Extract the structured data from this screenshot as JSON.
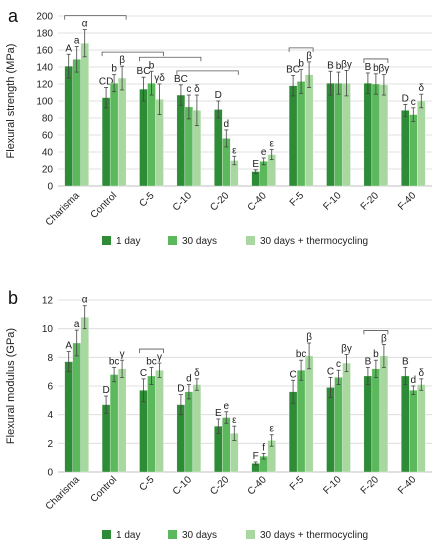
{
  "colors": {
    "day1": "#2e8b36",
    "day30": "#5cb85c",
    "thermo": "#a8d8a0"
  },
  "chart_data": [
    {
      "type": "bar",
      "panel_label": "a",
      "ylabel": "Flexural strength (MPa)",
      "ylim": [
        0,
        200
      ],
      "ytick_step": 20,
      "grid": true,
      "legend_position": "bottom",
      "categories": [
        "Charisma",
        "Control",
        "C-5",
        "C-10",
        "C-20",
        "C-40",
        "F-5",
        "F-10",
        "F-20",
        "F-40"
      ],
      "series": [
        {
          "name": "1 day",
          "values": [
            141,
            104,
            114,
            107,
            90,
            17,
            118,
            121,
            121,
            89
          ],
          "errors": [
            14,
            12,
            14,
            12,
            10,
            2,
            12,
            14,
            12,
            7
          ],
          "labels": [
            "A",
            "CD",
            "BC",
            "BC",
            "D",
            "E",
            "BC",
            "B",
            "B",
            "D"
          ]
        },
        {
          "name": "30 days",
          "values": [
            149,
            121,
            121,
            93,
            56,
            29,
            123,
            121,
            120,
            84
          ],
          "errors": [
            15,
            10,
            14,
            14,
            10,
            4,
            14,
            13,
            12,
            8
          ],
          "labels": [
            "a",
            "b",
            "b",
            "c",
            "d",
            "e",
            "b",
            "b",
            "b",
            "c"
          ]
        },
        {
          "name": "30 days + thermocycling",
          "values": [
            168,
            127,
            102,
            89,
            30,
            37,
            131,
            121,
            119,
            100
          ],
          "errors": [
            16,
            14,
            18,
            18,
            5,
            6,
            15,
            15,
            12,
            8
          ],
          "labels": [
            "α",
            "β",
            "γδ",
            "δ",
            "ε",
            "ε",
            "β",
            "βγ",
            "βγ",
            "δ"
          ]
        }
      ],
      "brackets": [
        [
          0,
          1
        ],
        [
          1,
          2
        ],
        [
          2,
          3
        ],
        [
          3,
          4
        ],
        [
          6,
          6
        ],
        [
          8,
          8
        ]
      ]
    },
    {
      "type": "bar",
      "panel_label": "b",
      "ylabel": "Flexural modulus (GPa)",
      "ylim": [
        0,
        12
      ],
      "ytick_step": 2,
      "grid": true,
      "legend_position": "bottom",
      "categories": [
        "Charisma",
        "Control",
        "C-5",
        "C-10",
        "C-20",
        "C-40",
        "F-5",
        "F-10",
        "F-20",
        "F-40"
      ],
      "series": [
        {
          "name": "1 day",
          "values": [
            7.7,
            4.7,
            5.7,
            4.7,
            3.2,
            0.6,
            5.6,
            5.9,
            6.7,
            6.7
          ],
          "errors": [
            0.7,
            0.6,
            0.8,
            0.7,
            0.5,
            0.1,
            0.8,
            0.7,
            0.6,
            0.6
          ],
          "labels": [
            "A",
            "D",
            "C",
            "D",
            "E",
            "F",
            "C",
            "C",
            "B",
            "B"
          ]
        },
        {
          "name": "30 days",
          "values": [
            9.0,
            6.8,
            6.7,
            5.6,
            3.8,
            1.1,
            7.1,
            6.6,
            7.2,
            5.7
          ],
          "errors": [
            0.9,
            0.5,
            0.6,
            0.5,
            0.4,
            0.2,
            0.7,
            0.5,
            0.6,
            0.3
          ],
          "labels": [
            "a",
            "bc",
            "bc",
            "d",
            "e",
            "f",
            "bc",
            "c",
            "b",
            "d"
          ]
        },
        {
          "name": "30 days + thermocycling",
          "values": [
            10.8,
            7.2,
            7.1,
            6.1,
            2.7,
            2.2,
            8.1,
            7.6,
            8.1,
            6.1
          ],
          "errors": [
            0.8,
            0.6,
            0.5,
            0.4,
            0.5,
            0.4,
            0.9,
            0.6,
            0.8,
            0.4
          ],
          "labels": [
            "α",
            "γ",
            "γ",
            "δ",
            "ε",
            "ε",
            "β",
            "βγ",
            "β",
            "δ"
          ]
        }
      ],
      "brackets": [
        [
          2,
          2
        ],
        [
          8,
          8
        ]
      ]
    }
  ]
}
